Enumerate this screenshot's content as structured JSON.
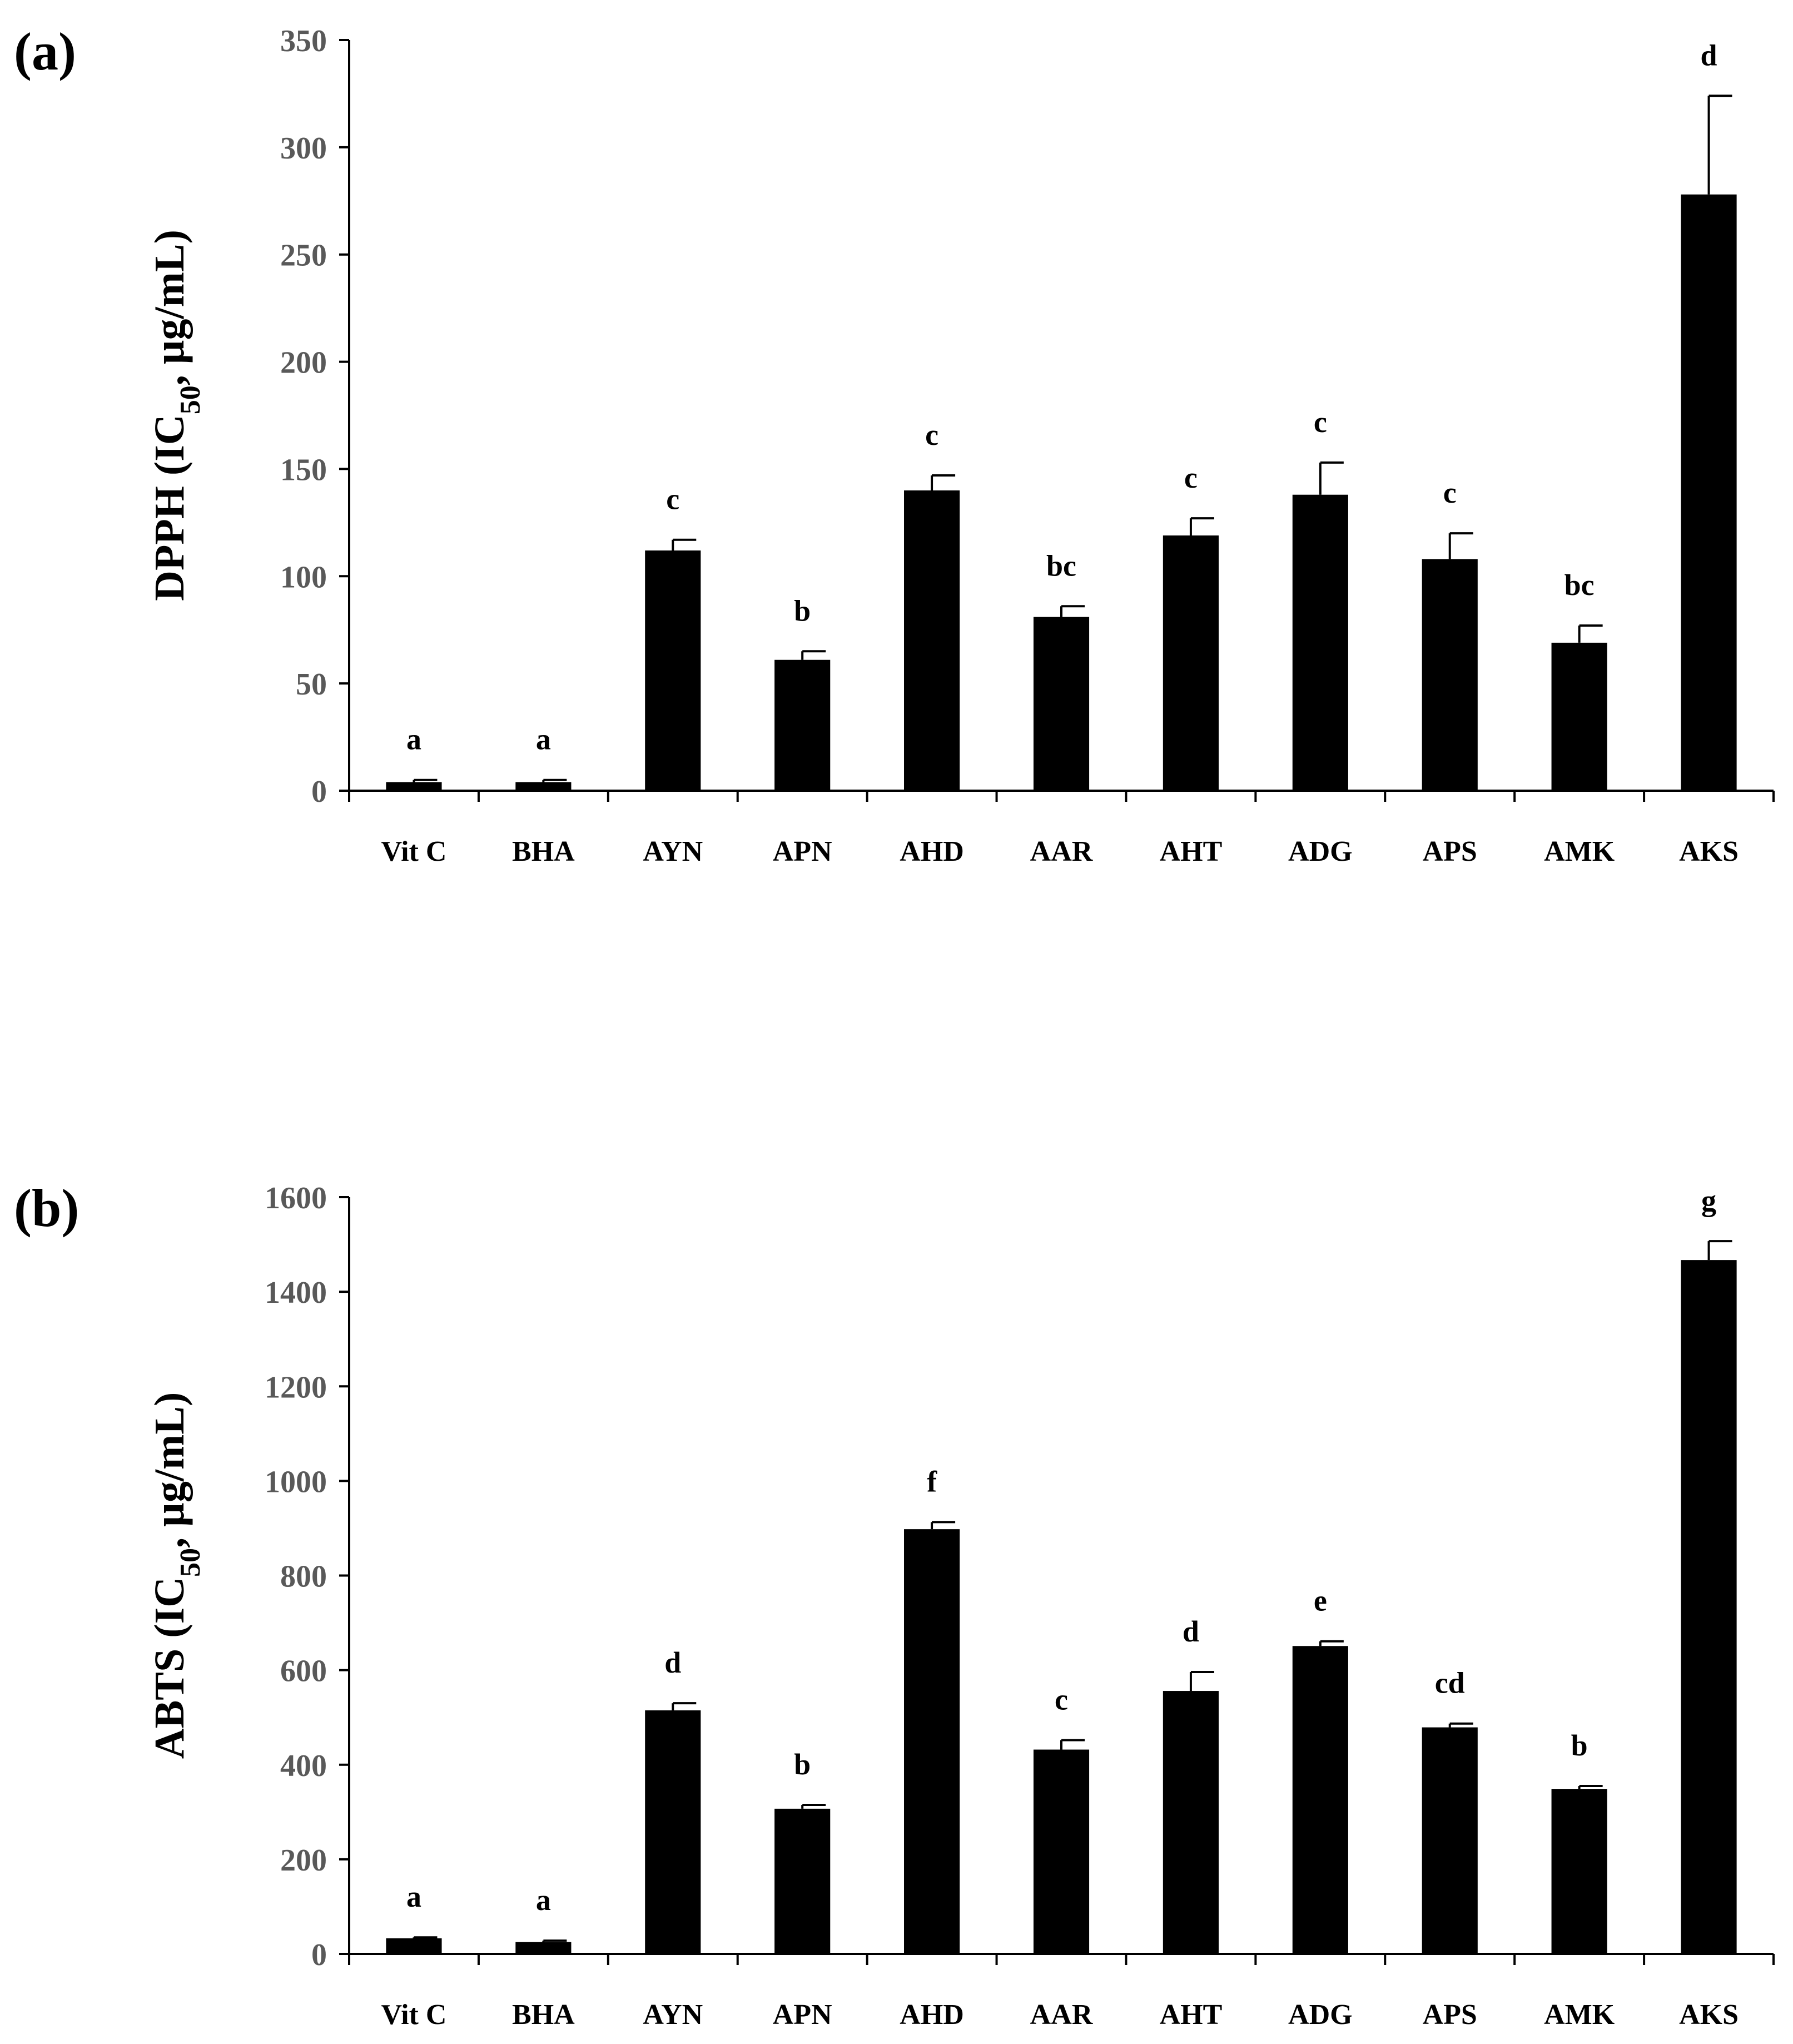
{
  "chart_data": [
    {
      "type": "bar",
      "panel": "(a)",
      "ylabel_prefix": "DPPH (IC",
      "ylabel_sub": "50",
      "ylabel_suffix": ", µg/mL)",
      "ylim": [
        0,
        350
      ],
      "yticks": [
        0,
        50,
        100,
        150,
        200,
        250,
        300,
        350
      ],
      "categories": [
        "Vit C",
        "BHA",
        "AYN",
        "APN",
        "AHD",
        "AAR",
        "AHT",
        "ADG",
        "APS",
        "AMK",
        "AKS"
      ],
      "values": [
        4,
        4,
        112,
        61,
        140,
        81,
        119,
        138,
        108,
        69,
        278
      ],
      "errors": [
        1,
        1,
        5,
        4,
        7,
        5,
        8,
        15,
        12,
        8,
        46
      ],
      "significance": [
        "a",
        "a",
        "c",
        "b",
        "c",
        "bc",
        "c",
        "c",
        "c",
        "bc",
        "d"
      ],
      "color": "#000000"
    },
    {
      "type": "bar",
      "panel": "(b)",
      "ylabel_prefix": "ABTS (IC",
      "ylabel_sub": "50",
      "ylabel_suffix": ", µg/mL)",
      "ylim": [
        0,
        1600
      ],
      "yticks": [
        0,
        200,
        400,
        600,
        800,
        1000,
        1200,
        1400,
        1600
      ],
      "categories": [
        "Vit C",
        "BHA",
        "AYN",
        "APN",
        "AHD",
        "AAR",
        "AHT",
        "ADG",
        "APS",
        "AMK",
        "AKS"
      ],
      "values": [
        33,
        25,
        515,
        307,
        898,
        432,
        556,
        651,
        479,
        349,
        1467
      ],
      "errors": [
        2,
        3,
        15,
        8,
        15,
        20,
        40,
        10,
        8,
        6,
        40
      ],
      "significance": [
        "a",
        "a",
        "d",
        "b",
        "f",
        "c",
        "d",
        "e",
        "cd",
        "b",
        "g"
      ],
      "color": "#000000"
    }
  ]
}
